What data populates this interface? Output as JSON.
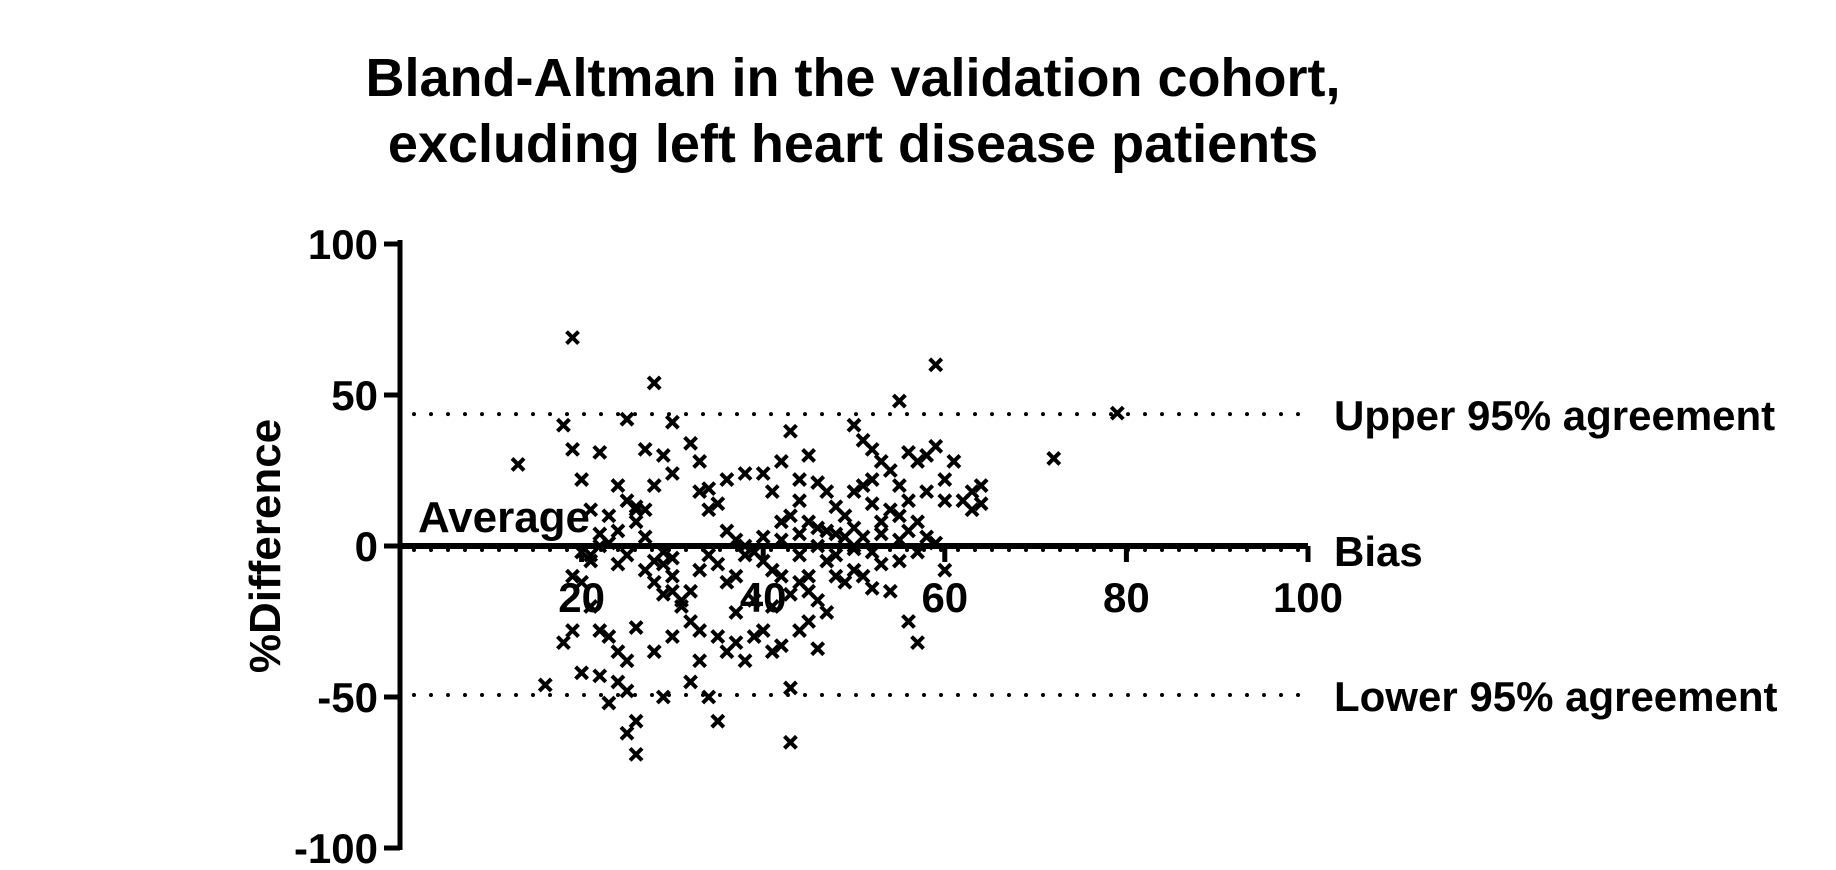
{
  "chart_data": {
    "type": "scatter",
    "title_lines": [
      "Bland-Altman in the validation cohort,",
      "excluding left heart disease patients"
    ],
    "xlabel": "Average",
    "ylabel": "%Difference",
    "xlim": [
      0,
      100
    ],
    "ylim": [
      -100,
      100
    ],
    "x_ticks": [
      "20",
      "40",
      "60",
      "80",
      "100"
    ],
    "y_ticks": [
      "100",
      "50",
      "0",
      "-50",
      "-100"
    ],
    "marker": "x",
    "reference_lines": [
      {
        "name": "Upper 95% agreement",
        "y": 45,
        "style": "dotted"
      },
      {
        "name": "Bias",
        "y": 0,
        "style": "dotted"
      },
      {
        "name": "Lower 95% agreement",
        "y": -48,
        "style": "dotted"
      }
    ],
    "points": [
      [
        19,
        69
      ],
      [
        28,
        54
      ],
      [
        59,
        60
      ],
      [
        79,
        44
      ],
      [
        72,
        29
      ],
      [
        13,
        27
      ],
      [
        55,
        48
      ],
      [
        18,
        40
      ],
      [
        19,
        32
      ],
      [
        20,
        22
      ],
      [
        22,
        31
      ],
      [
        25,
        42
      ],
      [
        27,
        32
      ],
      [
        30,
        41
      ],
      [
        32,
        34
      ],
      [
        33,
        28
      ],
      [
        29,
        30
      ],
      [
        30,
        24
      ],
      [
        28,
        20
      ],
      [
        24,
        20
      ],
      [
        25,
        15
      ],
      [
        21,
        12
      ],
      [
        23,
        10
      ],
      [
        26,
        13
      ],
      [
        27,
        12
      ],
      [
        24,
        5
      ],
      [
        22,
        4
      ],
      [
        20,
        -2
      ],
      [
        21,
        -5
      ],
      [
        25,
        -3
      ],
      [
        28,
        -5
      ],
      [
        29,
        -2
      ],
      [
        30,
        -4
      ],
      [
        27,
        3
      ],
      [
        26,
        8
      ],
      [
        26,
        12
      ],
      [
        33,
        18
      ],
      [
        34,
        19
      ],
      [
        35,
        14
      ],
      [
        34,
        12
      ],
      [
        36,
        22
      ],
      [
        38,
        24
      ],
      [
        40,
        24
      ],
      [
        42,
        28
      ],
      [
        43,
        38
      ],
      [
        45,
        30
      ],
      [
        44,
        22
      ],
      [
        46,
        21
      ],
      [
        47,
        18
      ],
      [
        44,
        15
      ],
      [
        41,
        18
      ],
      [
        43,
        10
      ],
      [
        45,
        8
      ],
      [
        44,
        4
      ],
      [
        46,
        6
      ],
      [
        42,
        2
      ],
      [
        50,
        40
      ],
      [
        51,
        35
      ],
      [
        52,
        32
      ],
      [
        53,
        28
      ],
      [
        52,
        22
      ],
      [
        54,
        25
      ],
      [
        55,
        20
      ],
      [
        56,
        31
      ],
      [
        57,
        28
      ],
      [
        58,
        30
      ],
      [
        59,
        33
      ],
      [
        60,
        22
      ],
      [
        61,
        28
      ],
      [
        62,
        15
      ],
      [
        63,
        18
      ],
      [
        64,
        14
      ],
      [
        64,
        20
      ],
      [
        63,
        12
      ],
      [
        60,
        15
      ],
      [
        58,
        18
      ],
      [
        56,
        15
      ],
      [
        55,
        10
      ],
      [
        54,
        12
      ],
      [
        52,
        14
      ],
      [
        50,
        18
      ],
      [
        51,
        20
      ],
      [
        49,
        10
      ],
      [
        48,
        13
      ],
      [
        47,
        5
      ],
      [
        49,
        3
      ],
      [
        50,
        0
      ],
      [
        52,
        -2
      ],
      [
        53,
        4
      ],
      [
        55,
        2
      ],
      [
        56,
        5
      ],
      [
        57,
        8
      ],
      [
        58,
        3
      ],
      [
        59,
        1
      ],
      [
        57,
        -2
      ],
      [
        55,
        -5
      ],
      [
        53,
        -6
      ],
      [
        51,
        -10
      ],
      [
        52,
        -14
      ],
      [
        49,
        -12
      ],
      [
        48,
        -10
      ],
      [
        50,
        -8
      ],
      [
        54,
        -15
      ],
      [
        56,
        -25
      ],
      [
        57,
        -32
      ],
      [
        60,
        -8
      ],
      [
        19,
        -10
      ],
      [
        20,
        -12
      ],
      [
        21,
        -20
      ],
      [
        22,
        -28
      ],
      [
        23,
        -30
      ],
      [
        24,
        -35
      ],
      [
        25,
        -38
      ],
      [
        26,
        -27
      ],
      [
        24,
        -45
      ],
      [
        25,
        -48
      ],
      [
        23,
        -52
      ],
      [
        26,
        -58
      ],
      [
        25,
        -62
      ],
      [
        26,
        -69
      ],
      [
        22,
        -43
      ],
      [
        20,
        -42
      ],
      [
        18,
        -32
      ],
      [
        19,
        -28
      ],
      [
        16,
        -46
      ],
      [
        28,
        -35
      ],
      [
        29,
        -50
      ],
      [
        30,
        -30
      ],
      [
        31,
        -20
      ],
      [
        32,
        -45
      ],
      [
        33,
        -38
      ],
      [
        34,
        -50
      ],
      [
        35,
        -58
      ],
      [
        36,
        -35
      ],
      [
        37,
        -32
      ],
      [
        38,
        -38
      ],
      [
        39,
        -30
      ],
      [
        40,
        -28
      ],
      [
        41,
        -35
      ],
      [
        42,
        -33
      ],
      [
        43,
        -47
      ],
      [
        43,
        -65
      ],
      [
        44,
        -28
      ],
      [
        45,
        -25
      ],
      [
        46,
        -34
      ],
      [
        47,
        -22
      ],
      [
        46,
        -18
      ],
      [
        45,
        -15
      ],
      [
        44,
        -12
      ],
      [
        42,
        -10
      ],
      [
        41,
        -8
      ],
      [
        40,
        -5
      ],
      [
        38,
        -3
      ],
      [
        37,
        -10
      ],
      [
        36,
        -12
      ],
      [
        35,
        -6
      ],
      [
        34,
        -3
      ],
      [
        33,
        -8
      ],
      [
        32,
        -15
      ],
      [
        31,
        -18
      ],
      [
        30,
        -10
      ],
      [
        29,
        -16
      ],
      [
        28,
        -12
      ],
      [
        21,
        -3
      ],
      [
        22,
        0
      ],
      [
        23,
        1
      ],
      [
        24,
        -6
      ],
      [
        27,
        -8
      ],
      [
        29,
        -6
      ],
      [
        30,
        -15
      ],
      [
        32,
        -25
      ],
      [
        33,
        -28
      ],
      [
        35,
        -30
      ],
      [
        37,
        -22
      ],
      [
        39,
        -18
      ],
      [
        41,
        -20
      ],
      [
        43,
        -16
      ],
      [
        45,
        -10
      ],
      [
        47,
        -5
      ],
      [
        48,
        -3
      ],
      [
        50,
        -1
      ],
      [
        51,
        3
      ],
      [
        53,
        8
      ],
      [
        36,
        5
      ],
      [
        37,
        2
      ],
      [
        38,
        0
      ],
      [
        39,
        -2
      ],
      [
        40,
        3
      ],
      [
        42,
        8
      ],
      [
        44,
        -3
      ],
      [
        46,
        0
      ],
      [
        48,
        4
      ],
      [
        50,
        6
      ]
    ]
  }
}
